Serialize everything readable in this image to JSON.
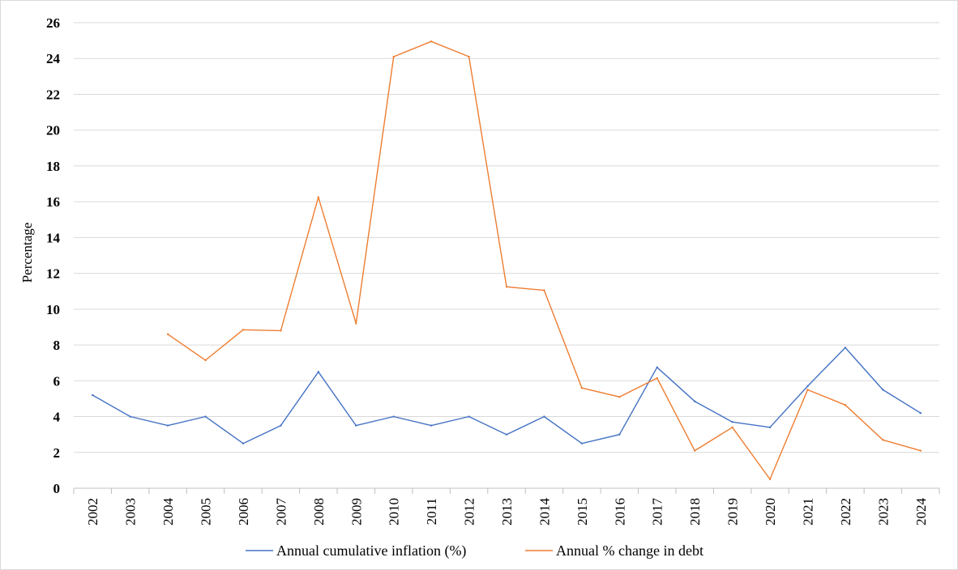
{
  "chart_data": {
    "type": "line",
    "title": "",
    "xlabel": "",
    "ylabel": "Percentage",
    "ylim": [
      0,
      26
    ],
    "y_ticks": [
      0,
      2,
      4,
      6,
      8,
      10,
      12,
      14,
      16,
      18,
      20,
      22,
      24,
      26
    ],
    "grid": true,
    "legend_position": "bottom",
    "categories": [
      "2002",
      "2003",
      "2004",
      "2005",
      "2006",
      "2007",
      "2008",
      "2009",
      "2010",
      "2011",
      "2012",
      "2013",
      "2014",
      "2015",
      "2016",
      "2017",
      "2018",
      "2019",
      "2020",
      "2021",
      "2022",
      "2023",
      "2024"
    ],
    "series": [
      {
        "name": "Annual cumulative inflation (%)",
        "color": "#4472C4",
        "values": [
          5.2,
          4.0,
          3.5,
          4.0,
          2.5,
          3.5,
          6.5,
          3.5,
          4.0,
          3.5,
          4.0,
          3.0,
          4.0,
          2.5,
          3.0,
          6.75,
          4.85,
          3.7,
          3.4,
          5.7,
          7.85,
          5.5,
          4.2
        ]
      },
      {
        "name": "Annual % change in debt",
        "color": "#ED7D31",
        "values": [
          null,
          null,
          8.6,
          7.15,
          8.85,
          8.8,
          16.25,
          9.2,
          24.1,
          24.95,
          24.1,
          11.25,
          11.05,
          5.6,
          5.1,
          6.15,
          2.1,
          3.4,
          0.5,
          5.5,
          4.65,
          2.7,
          2.1
        ]
      }
    ]
  }
}
